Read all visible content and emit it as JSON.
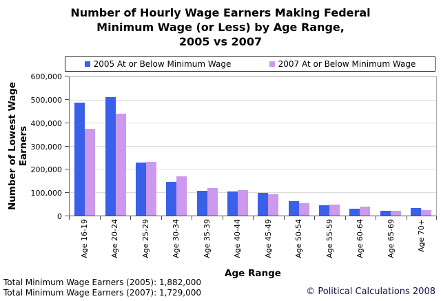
{
  "title": {
    "line1": "Number of Hourly Wage Earners Making Federal",
    "line2": "Minimum Wage (or Less) by Age Range,",
    "line3": "2005 vs 2007"
  },
  "chart_data": {
    "type": "bar",
    "title": "Number of Hourly Wage Earners Making Federal Minimum Wage (or Less) by Age Range, 2005 vs 2007",
    "categories": [
      "Age 16-19",
      "Age 20-24",
      "Age 25-29",
      "Age 30-34",
      "Age 35-39",
      "Age 40-44",
      "Age 45-49",
      "Age 50-54",
      "Age 55-59",
      "Age 60-64",
      "Age 65-69",
      "Age 70+"
    ],
    "series": [
      {
        "name": "2005 At or Below Minimum Wage",
        "color": "#3A5FE8",
        "values": [
          491000,
          512000,
          230000,
          146000,
          108000,
          103000,
          99000,
          62000,
          46000,
          30000,
          21000,
          34000
        ]
      },
      {
        "name": "2007 At or Below Minimum Wage",
        "color": "#CC99EE",
        "values": [
          375000,
          441000,
          232000,
          170000,
          119000,
          111000,
          92000,
          55000,
          49000,
          39000,
          22000,
          24000
        ]
      }
    ],
    "xlabel": "Age Range",
    "ylabel": "Number of Lowest Wage\nEarners",
    "ylim": [
      0,
      600000
    ],
    "ytick_interval": 100000,
    "ytick_labels": [
      "600,000",
      "500,000",
      "400,000",
      "300,000",
      "200,000",
      "100,000",
      "0"
    ],
    "grid": true,
    "gridline_color": "#dcdcdc",
    "legend_position": "top"
  },
  "footer": {
    "total_2005": "Total Minimum Wage Earners (2005): 1,882,000",
    "total_2007": "Total Minimum Wage Earners (2007): 1,729,000",
    "copyright": "© Political Calculations 2008"
  }
}
